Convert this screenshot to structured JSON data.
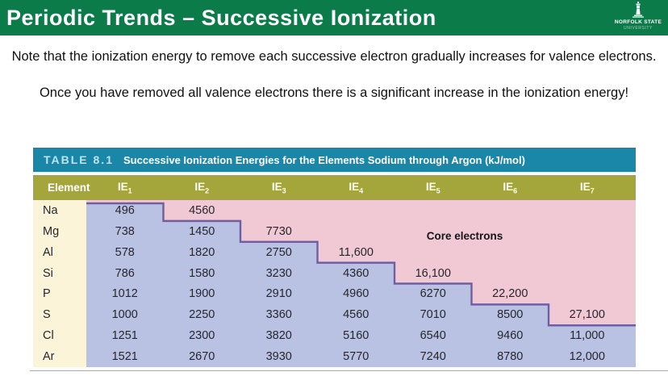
{
  "header": {
    "title": "Periodic Trends – Successive Ionization",
    "logo": {
      "line1": "NORFOLK STATE",
      "line2": "UNIVERSITY"
    }
  },
  "paragraphs": {
    "p1": "Note that the ionization energy to remove each successive electron gradually increases for valence electrons.",
    "p2": "Once you have removed all valence electrons there is a significant increase in the ionization energy!"
  },
  "table": {
    "title_label": "TABLE 8.1",
    "title_text": "Successive Ionization Energies for the Elements Sodium through Argon (kJ/mol)",
    "element_header": "Element",
    "ie_prefix": "IE",
    "column_subs": [
      "1",
      "2",
      "3",
      "4",
      "5",
      "6",
      "7"
    ],
    "core_label": "Core electrons",
    "rows": [
      {
        "element": "Na",
        "values": [
          "496",
          "4560",
          "",
          "",
          "",
          "",
          ""
        ]
      },
      {
        "element": "Mg",
        "values": [
          "738",
          "1450",
          "7730",
          "",
          "",
          "",
          ""
        ]
      },
      {
        "element": "Al",
        "values": [
          "578",
          "1820",
          "2750",
          "11,600",
          "",
          "",
          ""
        ]
      },
      {
        "element": "Si",
        "values": [
          "786",
          "1580",
          "3230",
          "4360",
          "16,100",
          "",
          ""
        ]
      },
      {
        "element": "P",
        "values": [
          "1012",
          "1900",
          "2910",
          "4960",
          "6270",
          "22,200",
          ""
        ]
      },
      {
        "element": "S",
        "values": [
          "1000",
          "2250",
          "3360",
          "4560",
          "7010",
          "8500",
          "27,100"
        ]
      },
      {
        "element": "Cl",
        "values": [
          "1251",
          "2300",
          "3820",
          "5160",
          "6540",
          "9460",
          "11,000"
        ]
      },
      {
        "element": "Ar",
        "values": [
          "1521",
          "2670",
          "3930",
          "5770",
          "7240",
          "8780",
          "12,000"
        ]
      }
    ],
    "valence_counts": [
      1,
      2,
      3,
      4,
      5,
      6,
      7,
      7
    ],
    "colors": {
      "banner_green": "#0b7b4a",
      "table_teal": "#1b87a8",
      "header_olive": "#a4a53a",
      "element_cream": "#fbf4d9",
      "valence_blue": "#b9c2e2",
      "core_pink": "#f1c9d4",
      "step_purple": "#6f5fa0"
    }
  }
}
